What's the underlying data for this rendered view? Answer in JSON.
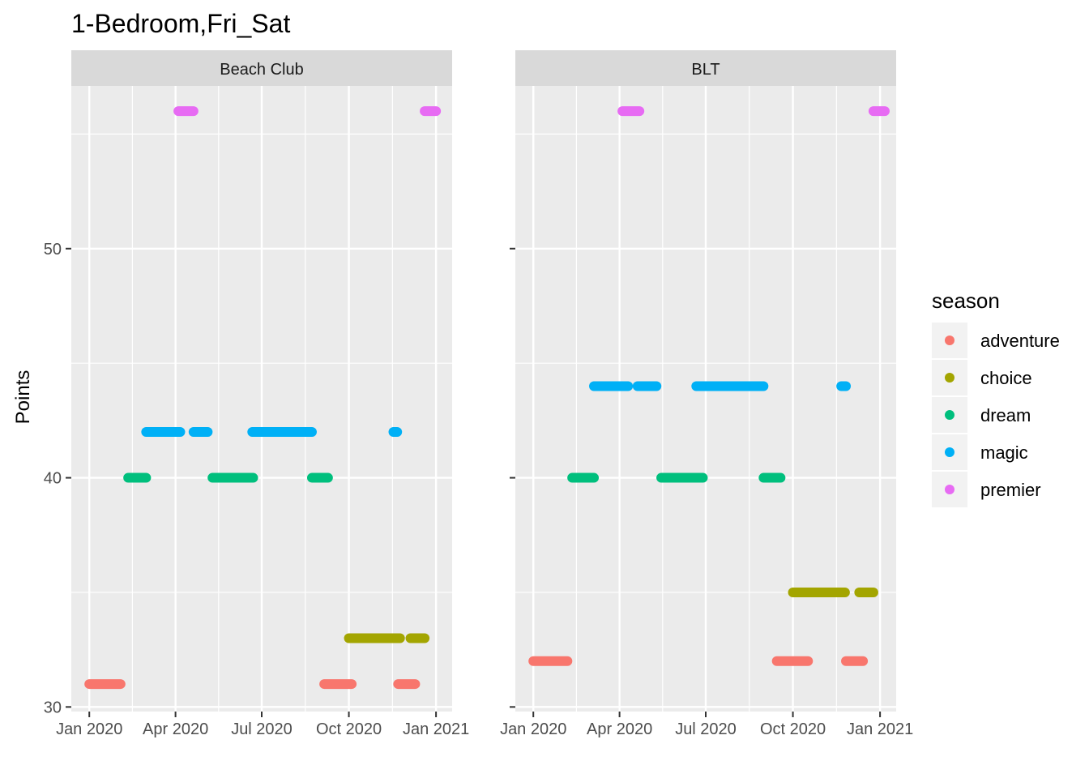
{
  "chart_data": {
    "type": "scatter",
    "title": "1-Bedroom,Fri_Sat",
    "ylabel": "Points",
    "xlabel": "",
    "ylim": [
      29.8,
      57.1
    ],
    "yticks": [
      30,
      40,
      50
    ],
    "xlim": [
      "2019-12-13",
      "2021-01-18"
    ],
    "xticks": [
      {
        "date": "2020-01-01",
        "label": "Jan 2020"
      },
      {
        "date": "2020-04-01",
        "label": "Apr 2020"
      },
      {
        "date": "2020-07-01",
        "label": "Jul 2020"
      },
      {
        "date": "2020-10-01",
        "label": "Oct 2020"
      },
      {
        "date": "2021-01-01",
        "label": "Jan 2021"
      }
    ],
    "grid": true,
    "legend": {
      "title": "season",
      "position": "right",
      "entries": [
        {
          "name": "adventure",
          "color": "#F8766D"
        },
        {
          "name": "choice",
          "color": "#A3A500"
        },
        {
          "name": "dream",
          "color": "#00BF7D"
        },
        {
          "name": "magic",
          "color": "#00B0F6"
        },
        {
          "name": "premier",
          "color": "#E76BF3"
        }
      ]
    },
    "panels": [
      {
        "name": "Beach Club",
        "segments": [
          {
            "season": "adventure",
            "y": 31,
            "from": "2020-01-01",
            "to": "2020-02-03"
          },
          {
            "season": "dream",
            "y": 40,
            "from": "2020-02-11",
            "to": "2020-03-01"
          },
          {
            "season": "magic",
            "y": 42,
            "from": "2020-03-01",
            "to": "2020-04-06"
          },
          {
            "season": "premier",
            "y": 56,
            "from": "2020-04-04",
            "to": "2020-04-20"
          },
          {
            "season": "magic",
            "y": 42,
            "from": "2020-04-20",
            "to": "2020-05-05"
          },
          {
            "season": "dream",
            "y": 40,
            "from": "2020-05-10",
            "to": "2020-06-22"
          },
          {
            "season": "magic",
            "y": 42,
            "from": "2020-06-21",
            "to": "2020-08-23"
          },
          {
            "season": "dream",
            "y": 40,
            "from": "2020-08-23",
            "to": "2020-09-09"
          },
          {
            "season": "adventure",
            "y": 31,
            "from": "2020-09-05",
            "to": "2020-10-04"
          },
          {
            "season": "choice",
            "y": 33,
            "from": "2020-10-01",
            "to": "2020-11-24"
          },
          {
            "season": "magic",
            "y": 42,
            "from": "2020-11-17",
            "to": "2020-11-21"
          },
          {
            "season": "adventure",
            "y": 31,
            "from": "2020-11-22",
            "to": "2020-12-10"
          },
          {
            "season": "choice",
            "y": 33,
            "from": "2020-12-05",
            "to": "2020-12-20"
          },
          {
            "season": "premier",
            "y": 56,
            "from": "2020-12-20",
            "to": "2021-01-01"
          }
        ]
      },
      {
        "name": "BLT",
        "segments": [
          {
            "season": "adventure",
            "y": 32,
            "from": "2020-01-01",
            "to": "2020-02-06"
          },
          {
            "season": "dream",
            "y": 40,
            "from": "2020-02-11",
            "to": "2020-03-05"
          },
          {
            "season": "magic",
            "y": 44,
            "from": "2020-03-05",
            "to": "2020-04-10"
          },
          {
            "season": "premier",
            "y": 56,
            "from": "2020-04-04",
            "to": "2020-04-22"
          },
          {
            "season": "magic",
            "y": 44,
            "from": "2020-04-20",
            "to": "2020-05-10"
          },
          {
            "season": "dream",
            "y": 40,
            "from": "2020-05-15",
            "to": "2020-06-28"
          },
          {
            "season": "magic",
            "y": 44,
            "from": "2020-06-21",
            "to": "2020-08-31"
          },
          {
            "season": "dream",
            "y": 40,
            "from": "2020-08-31",
            "to": "2020-09-18"
          },
          {
            "season": "adventure",
            "y": 32,
            "from": "2020-09-14",
            "to": "2020-10-17"
          },
          {
            "season": "choice",
            "y": 35,
            "from": "2020-10-01",
            "to": "2020-11-25"
          },
          {
            "season": "magic",
            "y": 44,
            "from": "2020-11-21",
            "to": "2020-11-26"
          },
          {
            "season": "adventure",
            "y": 32,
            "from": "2020-11-26",
            "to": "2020-12-14"
          },
          {
            "season": "choice",
            "y": 35,
            "from": "2020-12-10",
            "to": "2020-12-25"
          },
          {
            "season": "premier",
            "y": 56,
            "from": "2020-12-25",
            "to": "2021-01-06"
          }
        ]
      }
    ]
  }
}
